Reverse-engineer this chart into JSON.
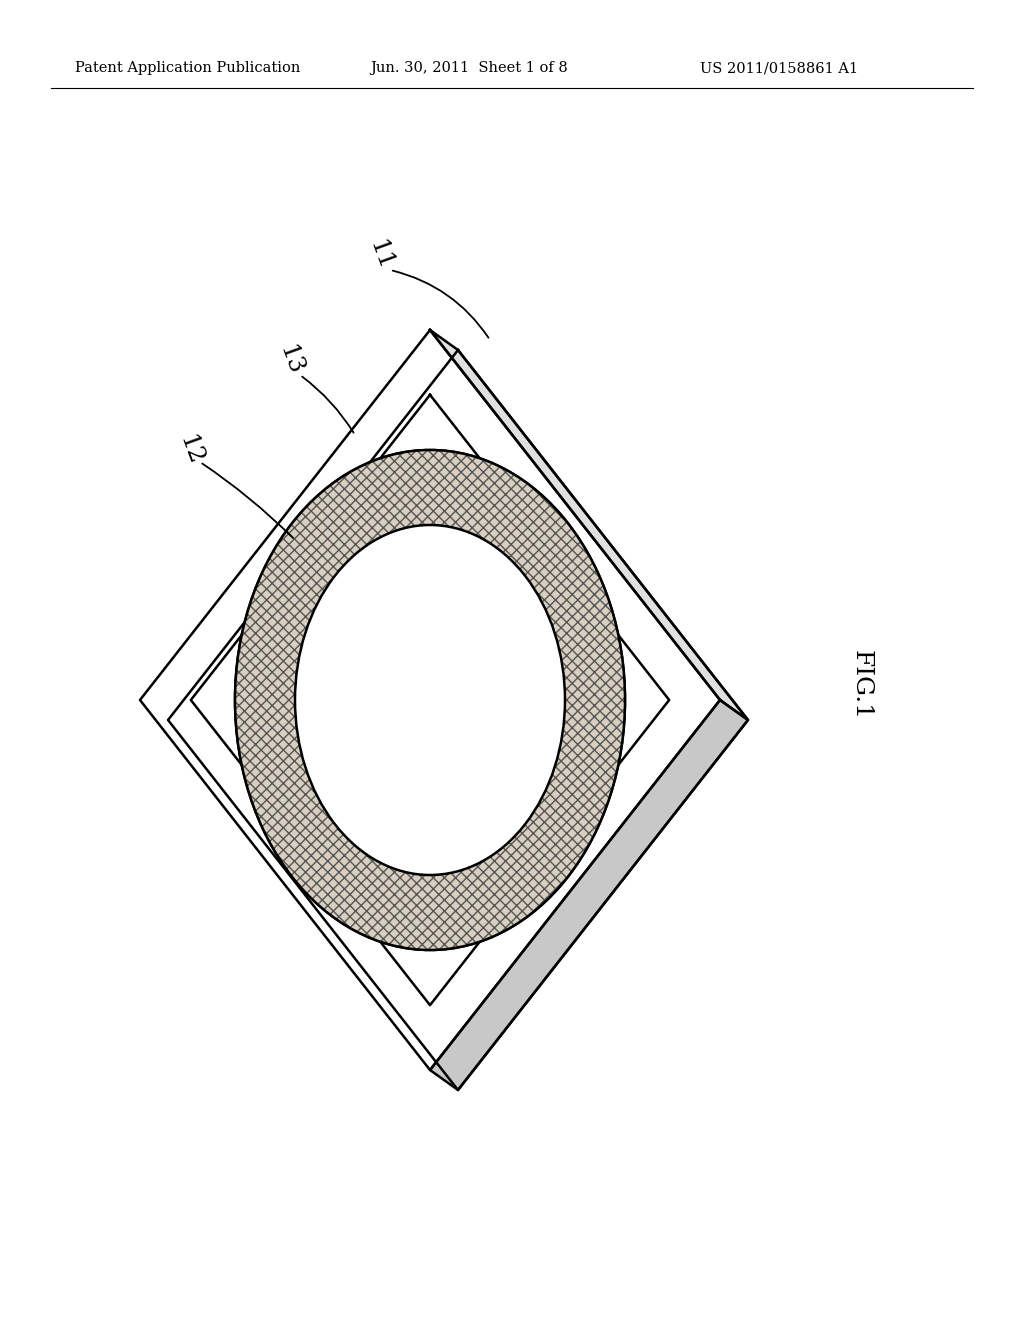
{
  "background_color": "#ffffff",
  "header_left": "Patent Application Publication",
  "header_mid": "Jun. 30, 2011  Sheet 1 of 8",
  "header_right": "US 2011/0158861 A1",
  "header_fontsize": 10.5,
  "fig_label": "FIG.1",
  "fig_label_fontsize": 18,
  "label_11": "11",
  "label_12": "12",
  "label_13": "13",
  "label_fontsize": 17,
  "line_color": "#000000",
  "line_width": 1.8,
  "bevel_color": "#e0e0e0",
  "fill_white": "#ffffff",
  "mesh_color": "#d8cfc0",
  "mesh_line_color": "#333333"
}
